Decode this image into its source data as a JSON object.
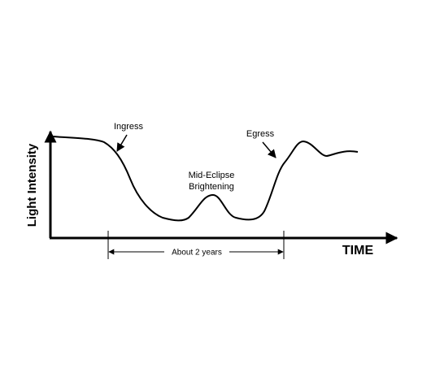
{
  "axes": {
    "y_label": "Light Intensity",
    "x_label": "TIME"
  },
  "annotations": {
    "ingress": "Ingress",
    "egress": "Egress",
    "mid_eclipse_line1": "Mid-Eclipse",
    "mid_eclipse_line2": "Brightening",
    "duration": "About 2 years"
  }
}
